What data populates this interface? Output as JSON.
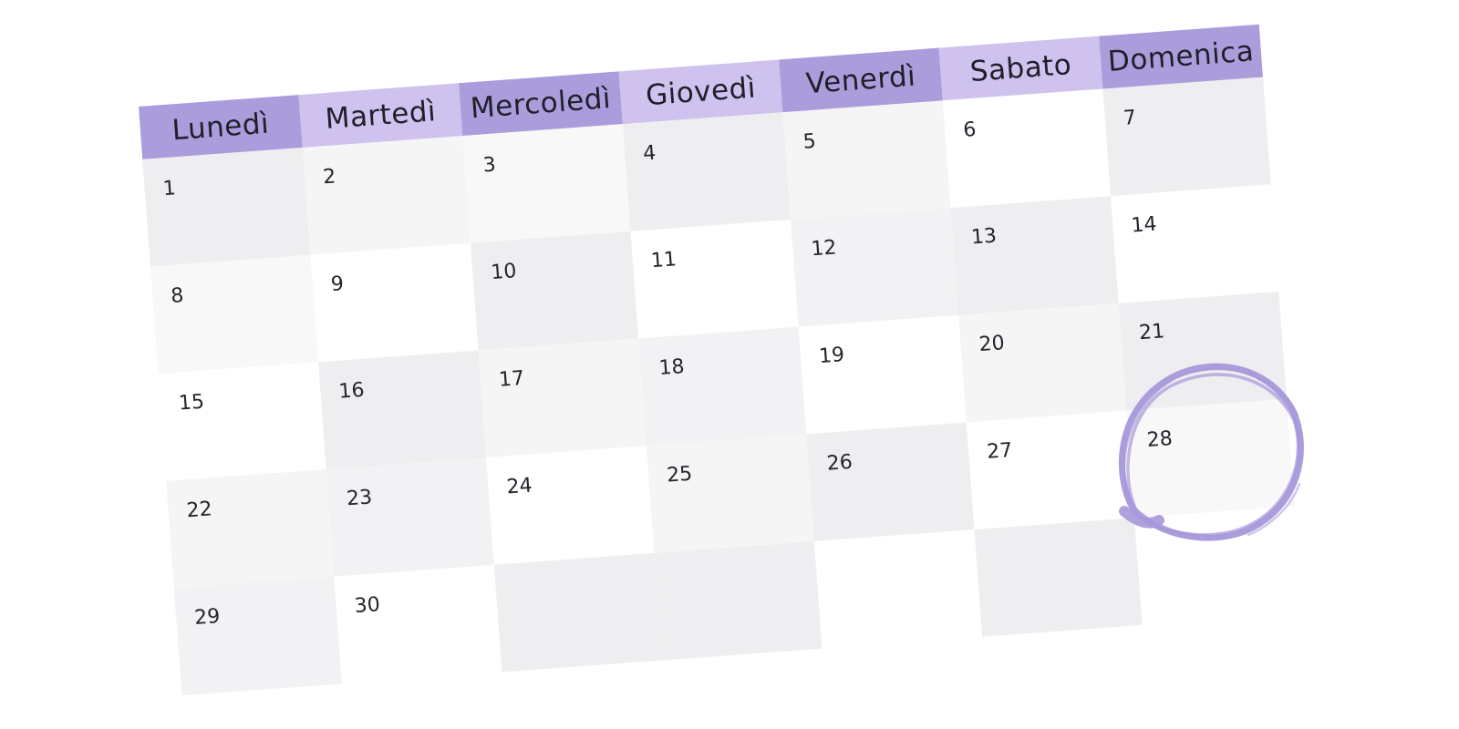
{
  "weekdays": [
    "Lunedì",
    "Martedì",
    "Mercoledì",
    "Giovedì",
    "Venerdì",
    "Sabato",
    "Domenica"
  ],
  "days": [
    {
      "label": "1",
      "shade": 2
    },
    {
      "label": "2",
      "shade": 1
    },
    {
      "label": "3",
      "shade": 3
    },
    {
      "label": "4",
      "shade": 2
    },
    {
      "label": "5",
      "shade": 1
    },
    {
      "label": "6",
      "shade": 0
    },
    {
      "label": "7",
      "shade": 2
    },
    {
      "label": "8",
      "shade": 3
    },
    {
      "label": "9",
      "shade": 0
    },
    {
      "label": "10",
      "shade": 2
    },
    {
      "label": "11",
      "shade": 0
    },
    {
      "label": "12",
      "shade": 4
    },
    {
      "label": "13",
      "shade": 2
    },
    {
      "label": "14",
      "shade": 0
    },
    {
      "label": "15",
      "shade": 0
    },
    {
      "label": "16",
      "shade": 2
    },
    {
      "label": "17",
      "shade": 1
    },
    {
      "label": "18",
      "shade": 4
    },
    {
      "label": "19",
      "shade": 0
    },
    {
      "label": "20",
      "shade": 1
    },
    {
      "label": "21",
      "shade": 2
    },
    {
      "label": "22",
      "shade": 1
    },
    {
      "label": "23",
      "shade": 4
    },
    {
      "label": "24",
      "shade": 0
    },
    {
      "label": "25",
      "shade": 1
    },
    {
      "label": "26",
      "shade": 2
    },
    {
      "label": "27",
      "shade": 0
    },
    {
      "label": "28",
      "shade": 3
    },
    {
      "label": "29",
      "shade": 4
    },
    {
      "label": "30",
      "shade": 0
    },
    {
      "label": "",
      "shade": 2
    },
    {
      "label": "",
      "shade": 2
    },
    {
      "label": "",
      "shade": 0
    },
    {
      "label": "",
      "shade": 2
    },
    {
      "label": "",
      "shade": 0
    }
  ],
  "highlighted_day": "28",
  "colors": {
    "header_dark": "#ab9ddc",
    "header_light": "#cfc2ee",
    "circle_stroke": "#a797da"
  },
  "icons": {
    "highlight": "brush-circle"
  }
}
